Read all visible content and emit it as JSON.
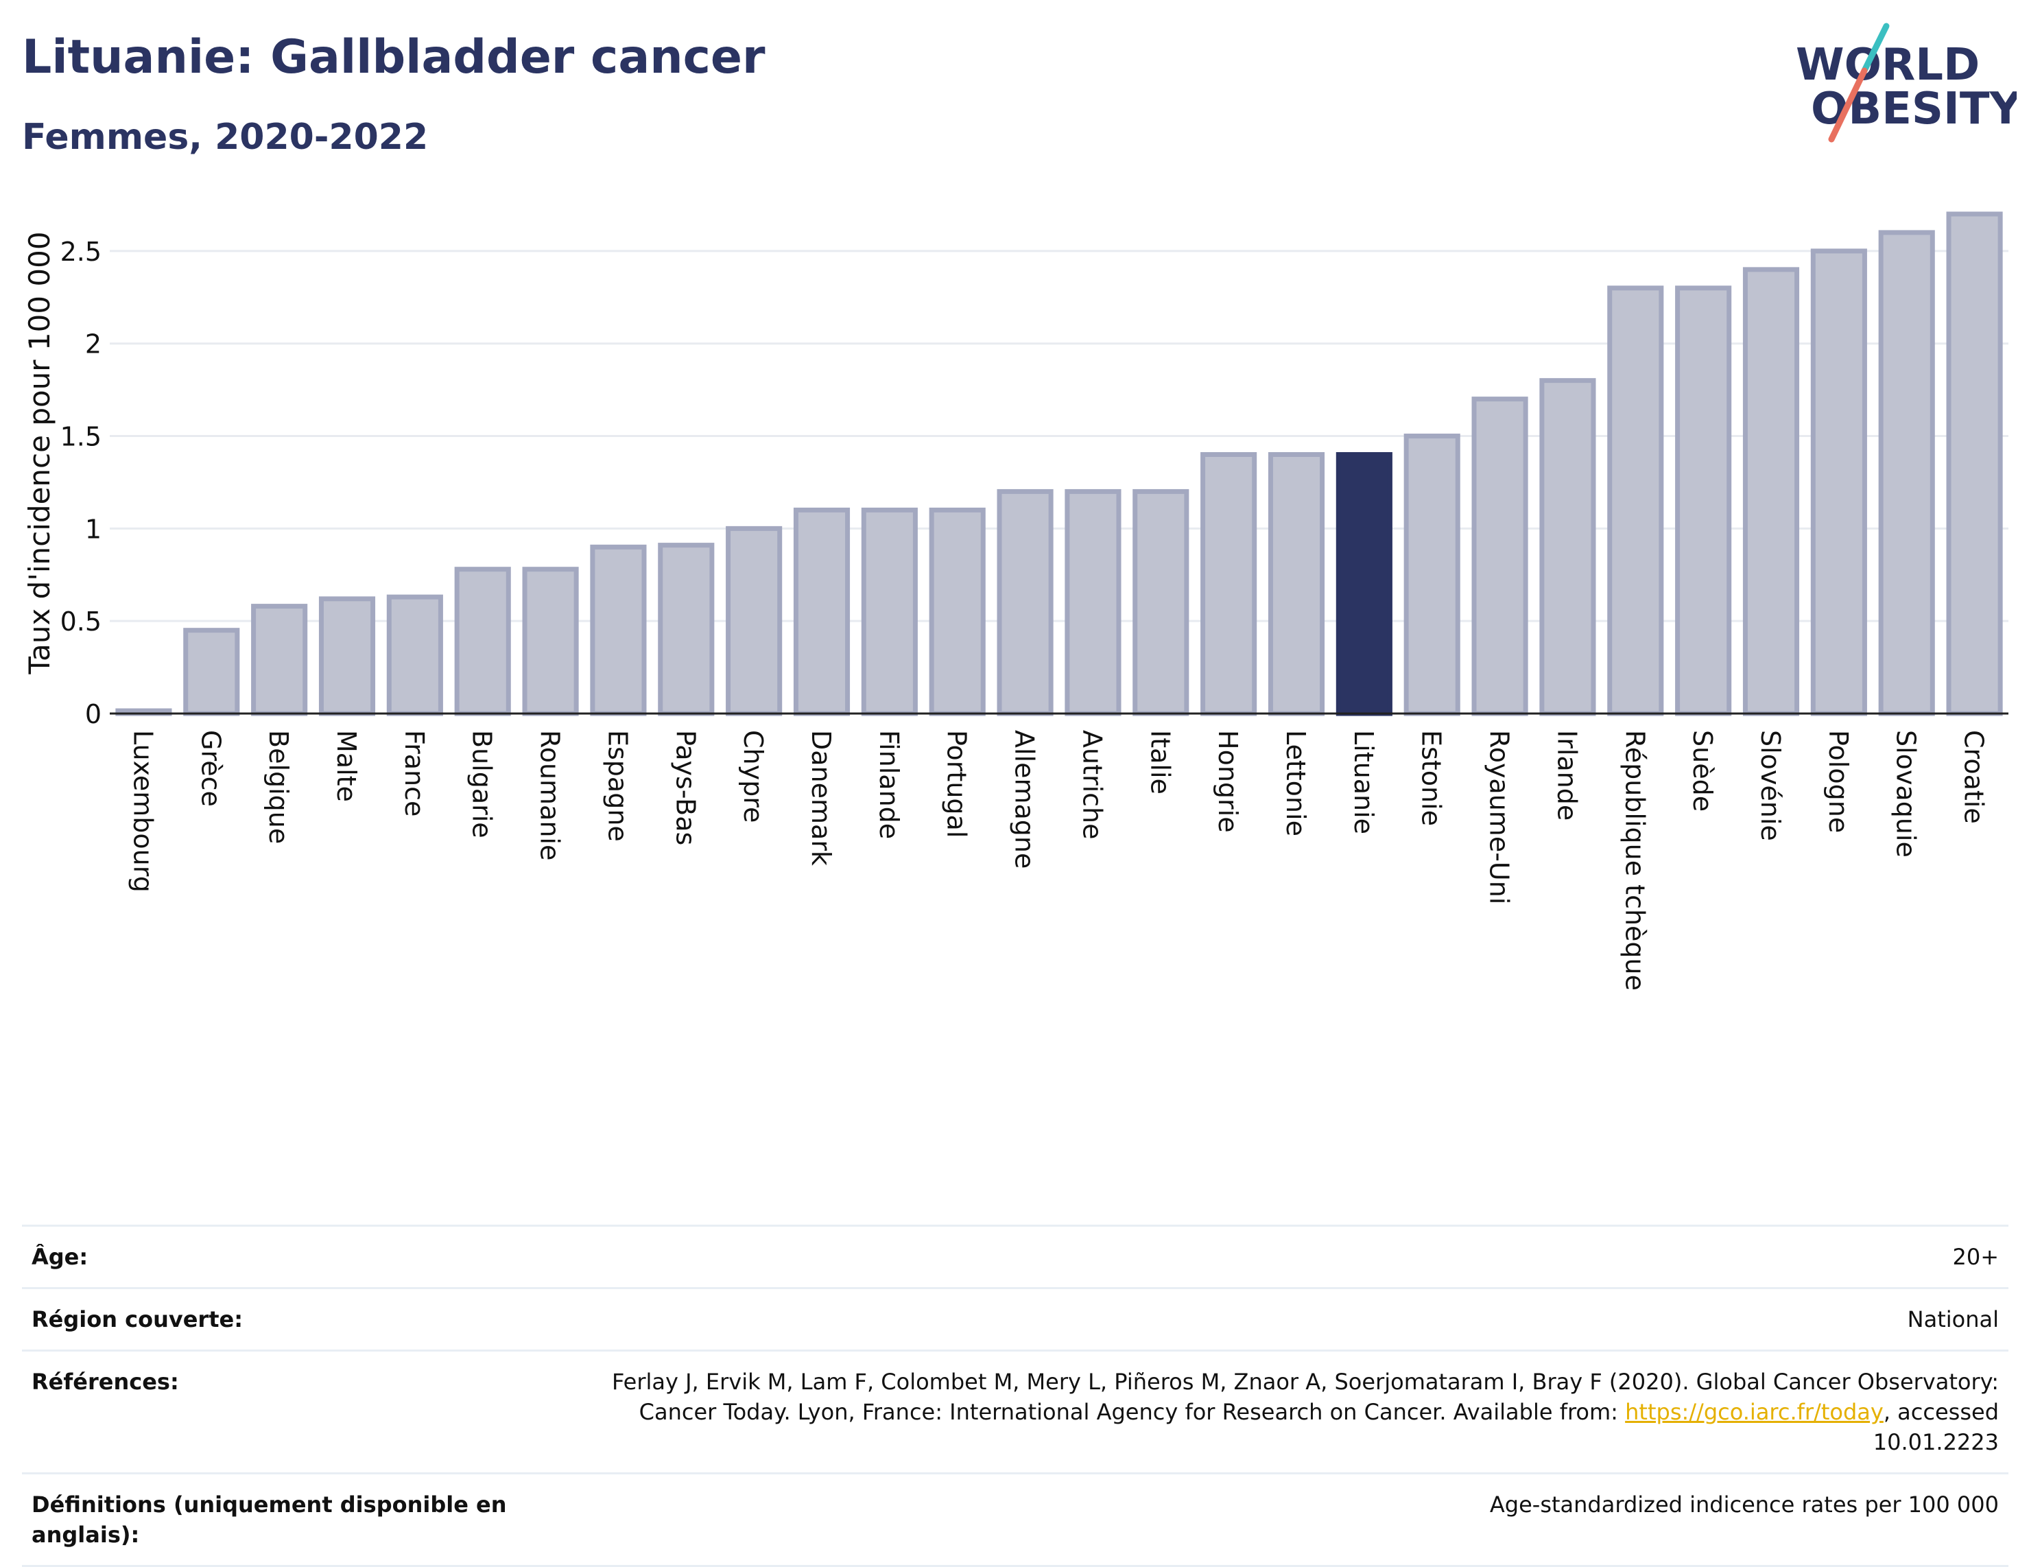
{
  "header": {
    "title": "Lituanie: Gallbladder cancer",
    "subtitle": "Femmes, 2020-2022"
  },
  "logo": {
    "line1": "WORLD",
    "line2": "OBESITY"
  },
  "colors": {
    "bar_fill": "#bfc2d0",
    "bar_stroke": "#a3a8c0",
    "highlight": "#2b3462",
    "grid": "#e8ebf0",
    "text": "#2b3462",
    "logo_teal": "#3bbfc1",
    "logo_coral": "#e8705f",
    "link": "#e5b000"
  },
  "chart_data": {
    "type": "bar",
    "title": "Lituanie: Gallbladder cancer",
    "subtitle": "Femmes, 2020-2022",
    "ylabel": "Taux d'incidence pour 100 000",
    "xlabel": "",
    "ylim": [
      0,
      2.8
    ],
    "yticks": [
      0,
      0.5,
      1,
      1.5,
      2,
      2.5
    ],
    "ytick_labels": [
      "0",
      "0.5",
      "1",
      "1.5",
      "2",
      "2.5"
    ],
    "grid": true,
    "highlight": "Lituanie",
    "categories": [
      "Luxembourg",
      "Grèce",
      "Belgique",
      "Malte",
      "France",
      "Bulgarie",
      "Roumanie",
      "Espagne",
      "Pays-Bas",
      "Chypre",
      "Danemark",
      "Finlande",
      "Portugal",
      "Allemagne",
      "Autriche",
      "Italie",
      "Hongrie",
      "Lettonie",
      "Lituanie",
      "Estonie",
      "Royaume-Uni",
      "Irlande",
      "République tchèque",
      "Suède",
      "Slovénie",
      "Pologne",
      "Slovaquie",
      "Croatie"
    ],
    "values": [
      0.01,
      0.45,
      0.58,
      0.62,
      0.63,
      0.78,
      0.78,
      0.9,
      0.91,
      1.0,
      1.1,
      1.1,
      1.1,
      1.2,
      1.2,
      1.2,
      1.4,
      1.4,
      1.4,
      1.5,
      1.7,
      1.8,
      2.3,
      2.3,
      2.4,
      2.5,
      2.6,
      2.7
    ]
  },
  "info_table": [
    {
      "label": "Âge:",
      "value": "20+"
    },
    {
      "label": "Région couverte:",
      "value": "National"
    },
    {
      "label": "Références:",
      "value_pre": "Ferlay J, Ervik M, Lam F, Colombet M, Mery L, Piñeros M, Znaor A, Soerjomataram I, Bray F (2020). Global Cancer Observatory: Cancer Today. Lyon, France: International Agency for Research on Cancer. Available from: ",
      "link": "https://gco.iarc.fr/today",
      "value_post": ", accessed 10.01.2223"
    },
    {
      "label": "Définitions (uniquement disponible en anglais):",
      "value": "Age-standardized indicence rates per 100 000"
    }
  ]
}
